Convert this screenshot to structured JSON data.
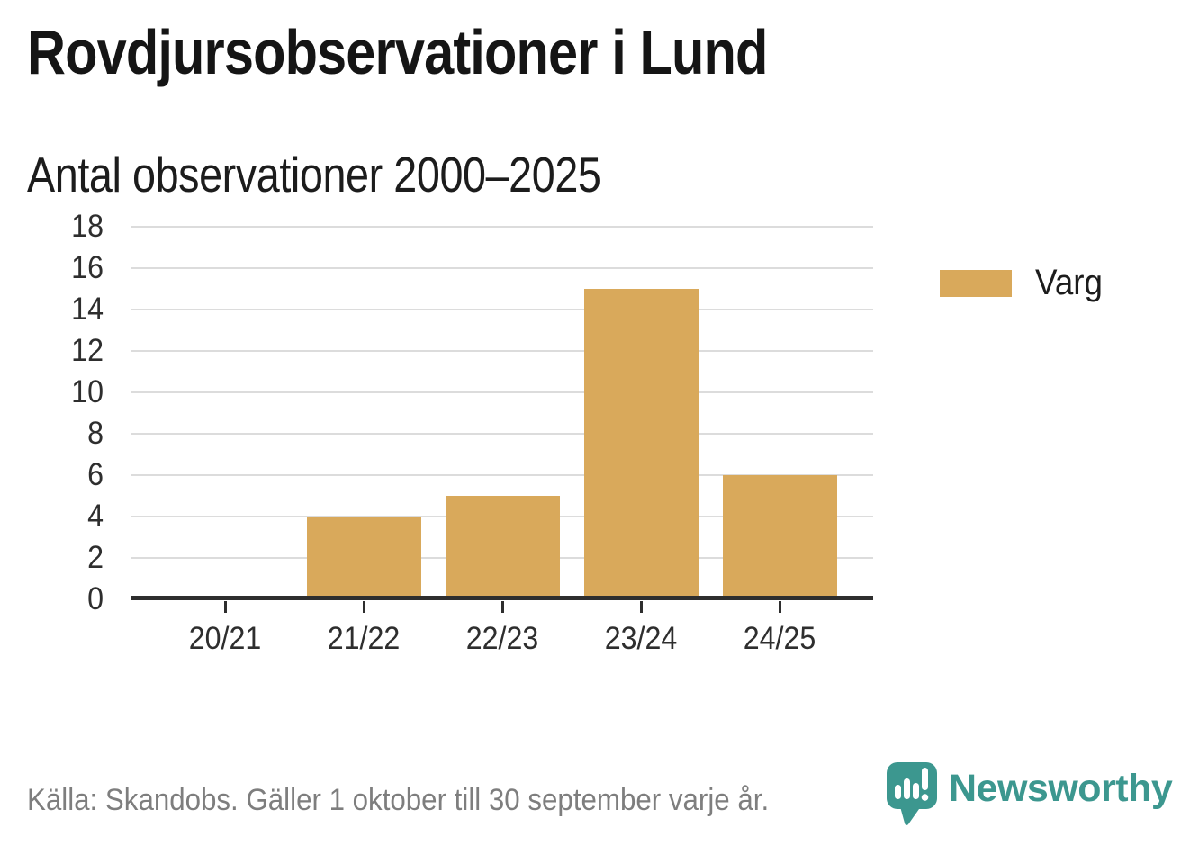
{
  "title": "Rovdjursobservationer i Lund",
  "subtitle": "Antal observationer 2000–2025",
  "legend": {
    "label": "Varg"
  },
  "footer": {
    "source": "Källa: Skandobs. Gäller 1 oktober till 30 september varje år.",
    "brand": "Newsworthy"
  },
  "colors": {
    "bar": "#D9A95B",
    "brand_teal": "#3C978F",
    "gridline": "#dcdcdc",
    "axis": "#2e2e2e",
    "source_text": "#7e7e7e"
  },
  "chart_data": {
    "type": "bar",
    "title": "Rovdjursobservationer i Lund",
    "subtitle": "Antal observationer 2000–2025",
    "categories": [
      "20/21",
      "21/22",
      "22/23",
      "23/24",
      "24/25"
    ],
    "series": [
      {
        "name": "Varg",
        "values": [
          0,
          4,
          5,
          15,
          6
        ]
      }
    ],
    "xlabel": "",
    "ylabel": "",
    "ylim": [
      0,
      18
    ],
    "yticks": [
      0,
      2,
      4,
      6,
      8,
      10,
      12,
      14,
      16,
      18
    ],
    "grid": true,
    "legend_position": "right",
    "source": "Källa: Skandobs. Gäller 1 oktober till 30 september varje år."
  }
}
